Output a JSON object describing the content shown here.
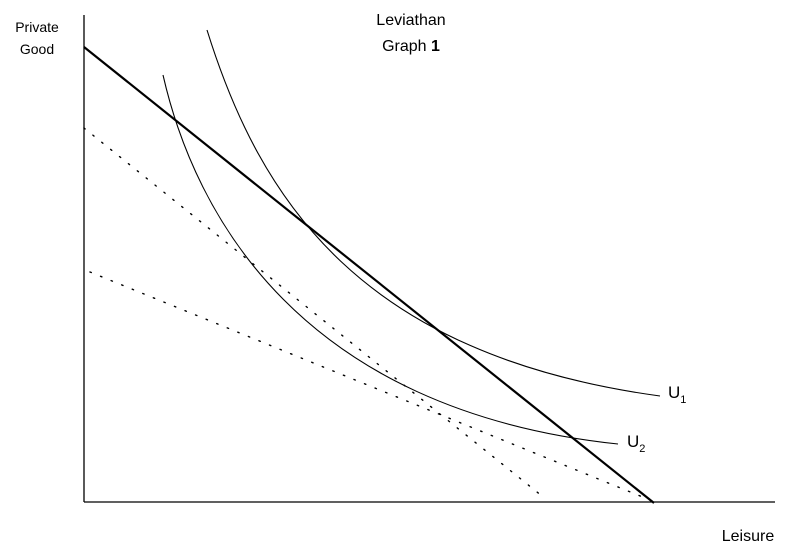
{
  "title": {
    "line1": "Leviathan",
    "line2_text": "Graph ",
    "line2_num": "1"
  },
  "y_axis": {
    "line1": "Private",
    "line2": "Good"
  },
  "x_axis": {
    "label": "Leisure"
  },
  "curves": {
    "u1": {
      "letter": "U",
      "sub": "1"
    },
    "u2": {
      "letter": "U",
      "sub": "2"
    }
  }
}
